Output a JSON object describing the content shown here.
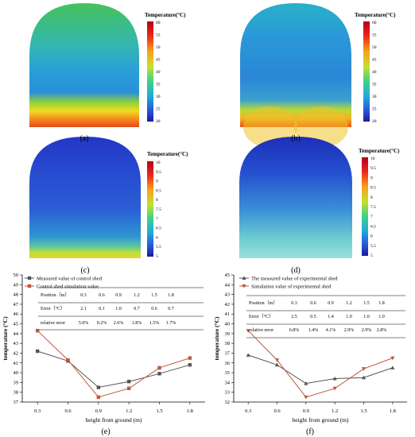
{
  "colors": {
    "measured": "#555555",
    "simulated": "#c0563a",
    "axis": "#000000"
  },
  "panel_labels": {
    "a": "(a)",
    "b": "(b)",
    "c": "(c)",
    "d": "(d)",
    "e": "(e)",
    "f": "(f)"
  },
  "colorbars": [
    {
      "title": "Temperature(°C)",
      "ticks": [
        "60",
        "55",
        "50",
        "45",
        "40",
        "35",
        "30",
        "25",
        "20"
      ]
    },
    {
      "title": "Temperature(°C)",
      "ticks": [
        "60",
        "55",
        "50",
        "45",
        "40",
        "35",
        "30",
        "25",
        "20"
      ]
    },
    {
      "title": "Temperature(°C)",
      "ticks": [
        "10",
        "9.5",
        "9",
        "8.5",
        "8",
        "7.5",
        "7",
        "6.5",
        "6",
        "5.5",
        "5"
      ]
    },
    {
      "title": "Temperature(°C)",
      "ticks": [
        "10",
        "9.5",
        "9",
        "8.5",
        "8",
        "7.5",
        "7",
        "6.5",
        "6",
        "5.5",
        "5"
      ]
    }
  ],
  "chart_data": [
    {
      "type": "line",
      "panel": "(e)",
      "xlabel": "height from ground (m)",
      "ylabel": "temperature (°C)",
      "x": [
        0.3,
        0.6,
        0.9,
        1.2,
        1.5,
        1.8
      ],
      "xticks": [
        "0.3",
        "0.6",
        "0.9",
        "1.2",
        "1.5",
        "1.8"
      ],
      "ylim": [
        37,
        50
      ],
      "yticks": [
        "37",
        "38",
        "39",
        "40",
        "41",
        "42",
        "43",
        "44",
        "45",
        "46",
        "47",
        "48",
        "49",
        "50"
      ],
      "legend_position": "top-left",
      "series": [
        {
          "name": "Measured value of control shed",
          "marker": "square",
          "values": [
            42.2,
            41.2,
            38.5,
            39.1,
            39.9,
            40.8
          ]
        },
        {
          "name": "Control shed simulation value",
          "marker": "square",
          "values": [
            44.3,
            41.3,
            37.5,
            38.4,
            40.5,
            41.5
          ]
        }
      ],
      "table": {
        "rows": [
          [
            "Position（m）",
            "0.3",
            "0.6",
            "0.9",
            "1.2",
            "1.5",
            "1.8"
          ],
          [
            "Error（°C）",
            "2.1",
            "0.1",
            "1.0",
            "0.7",
            "0.6",
            "0.7"
          ],
          [
            "relative error",
            "5.0%",
            "0.2%",
            "2.6%",
            "1.8%",
            "1.5%",
            "1.7%"
          ]
        ]
      }
    },
    {
      "type": "line",
      "panel": "(f)",
      "xlabel": "height from ground (m)",
      "ylabel": "temperature (°C)",
      "x": [
        0.3,
        0.6,
        0.9,
        1.2,
        1.5,
        1.8
      ],
      "xticks": [
        "0.3",
        "0.6",
        "0.9",
        "1.2",
        "1.5",
        "1.8"
      ],
      "ylim": [
        32,
        45
      ],
      "yticks": [
        "32",
        "33",
        "34",
        "35",
        "36",
        "37",
        "38",
        "39",
        "40",
        "41",
        "42",
        "43",
        "44",
        "45"
      ],
      "legend_position": "top-left",
      "series": [
        {
          "name": "The measured value of experimental shed",
          "marker": "triangle-up",
          "values": [
            36.8,
            35.8,
            33.9,
            34.4,
            34.5,
            35.5
          ]
        },
        {
          "name": "Simulation value of experimental shed",
          "marker": "triangle-down",
          "values": [
            39.3,
            36.3,
            32.5,
            33.4,
            35.4,
            36.5
          ]
        }
      ],
      "table": {
        "rows": [
          [
            "Position（m）",
            "0.3",
            "0.6",
            "0.9",
            "1.2",
            "1.5",
            "1.8"
          ],
          [
            "Error（°C）",
            "2.5",
            "0.5",
            "1.4",
            "1.0",
            "1.0",
            "1.0"
          ],
          [
            "relative error",
            "6.8%",
            "1.4%",
            "4.1%",
            "2.9%",
            "2.9%",
            "2.8%"
          ]
        ]
      }
    }
  ]
}
